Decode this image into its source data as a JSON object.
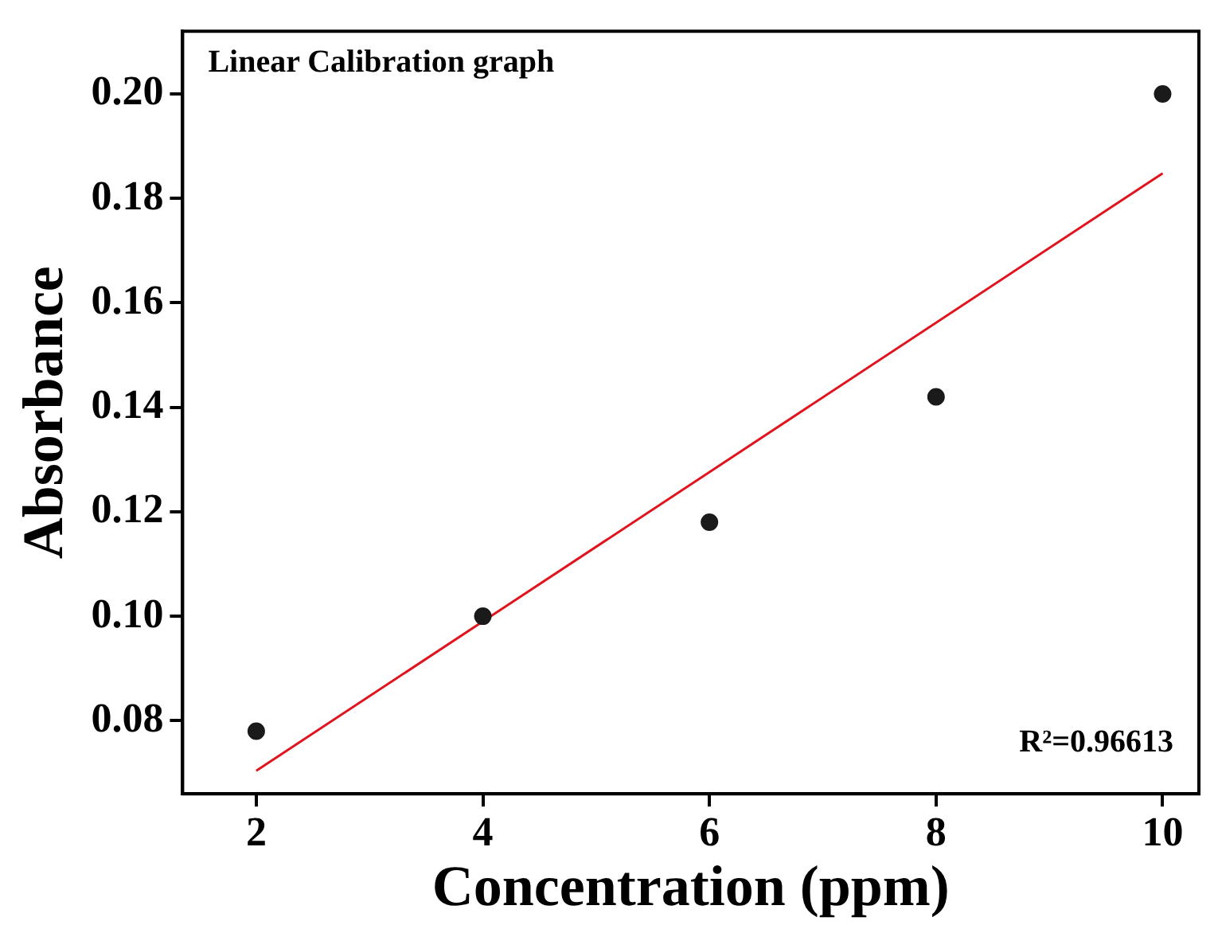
{
  "chart_data": {
    "type": "scatter",
    "xlabel": "Concentration (ppm)",
    "ylabel": "Absorbance",
    "x": [
      2,
      4,
      6,
      8,
      10
    ],
    "series": [
      {
        "type": "scatter",
        "color": "#1a1a1a",
        "values": [
          0.078,
          0.1,
          0.118,
          0.142,
          0.2
        ],
        "marker": "circle"
      },
      {
        "type": "line",
        "color": "#e0141e",
        "x": [
          2,
          10
        ],
        "values": [
          0.0704,
          0.1848
        ],
        "marker": "none",
        "line_style": "solid"
      }
    ],
    "xlim": [
      1.35,
      10.32
    ],
    "xticks": [
      2,
      4,
      6,
      8,
      10
    ],
    "ylim": [
      0.066,
      0.212
    ],
    "yticks": [
      0.08,
      {
        "value": 0.1,
        "label": "0.10"
      },
      0.12,
      0.14,
      0.16,
      0.18,
      {
        "value": 0.2,
        "label": "0.20"
      }
    ],
    "annotations": [
      "Linear Calibration graph",
      "R²=0.96613"
    ],
    "grid": false,
    "legend": false
  }
}
